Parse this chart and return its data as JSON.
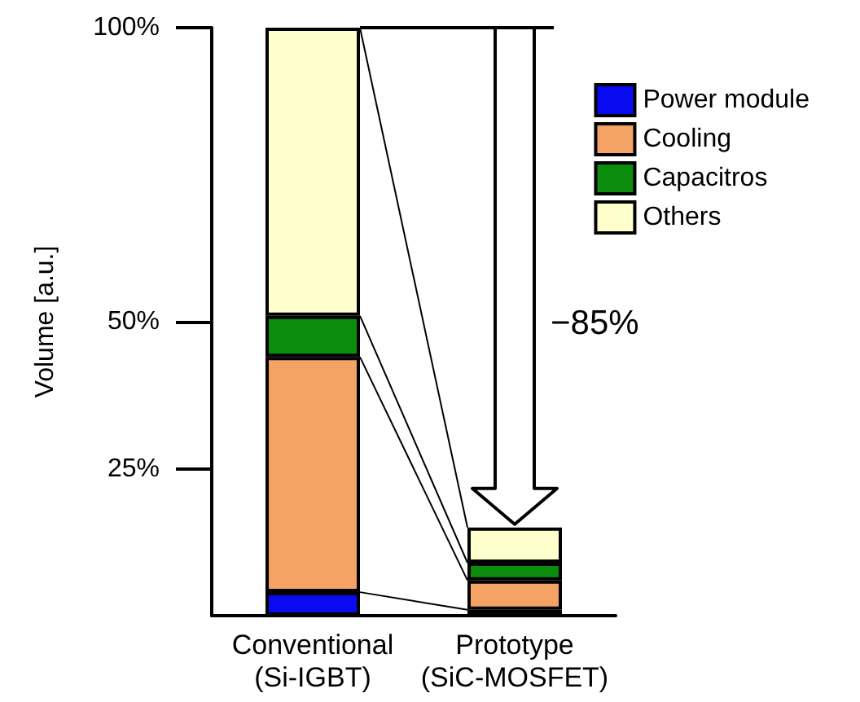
{
  "chart_data": {
    "type": "bar",
    "stacked": true,
    "ylabel": "Volume [a.u.]",
    "categories": [
      "Conventional\n(Si-IGBT)",
      "Prototype\n(SiC-MOSFET)"
    ],
    "ylim": [
      0,
      100
    ],
    "yticks": [
      {
        "value": 25,
        "label": "25%"
      },
      {
        "value": 50,
        "label": "50%"
      },
      {
        "value": 100,
        "label": "100%"
      }
    ],
    "series": [
      {
        "name": "Power module",
        "color": "#0a0af0",
        "values": [
          4,
          1
        ]
      },
      {
        "name": "Cooling",
        "color": "#f4a364",
        "values": [
          40,
          5
        ]
      },
      {
        "name": "Capacitros",
        "color": "#0c8c0c",
        "values": [
          7,
          3
        ]
      },
      {
        "name": "Others",
        "color": "#ffffcc",
        "values": [
          49,
          6
        ]
      }
    ],
    "legend": "top right",
    "grid": false,
    "annotations": [
      "−85%"
    ]
  }
}
